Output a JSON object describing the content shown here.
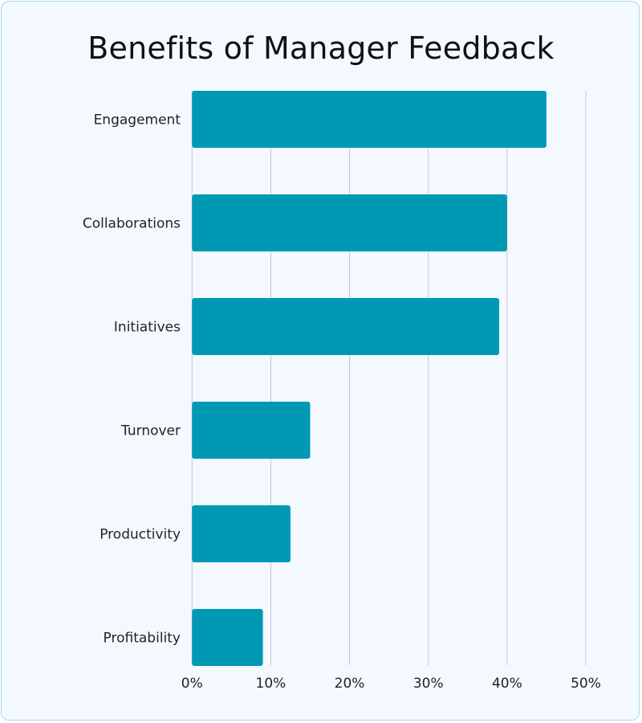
{
  "chart_data": {
    "type": "bar",
    "orientation": "horizontal",
    "title": "Benefits of Manager Feedback",
    "categories": [
      "Engagement",
      "Collaborations",
      "Initiatives",
      "Turnover",
      "Productivity",
      "Profitability"
    ],
    "values": [
      45,
      40,
      39,
      15,
      12.5,
      9
    ],
    "unit": "%",
    "xlim": [
      0,
      50
    ],
    "xticks": [
      "0%",
      "10%",
      "20%",
      "30%",
      "40%",
      "50%"
    ],
    "grid": "vertical",
    "bar_color": "#0099b4",
    "xlabel": "",
    "ylabel": ""
  }
}
